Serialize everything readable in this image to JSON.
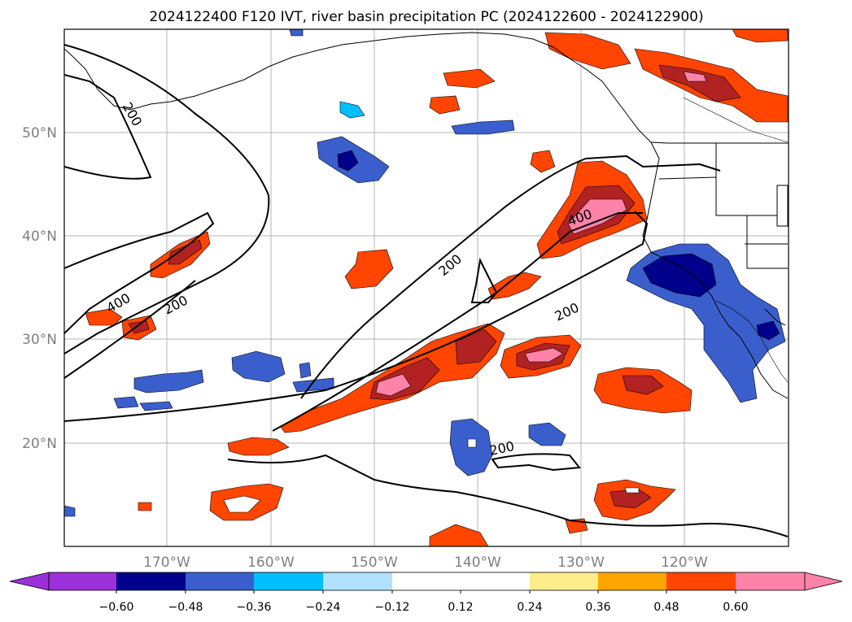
{
  "title": "2024122400 F120 IVT, river basin precipitation PC (2024122600 - 2024122900)",
  "map": {
    "lon_ticks": [
      "170°W",
      "160°W",
      "150°W",
      "140°W",
      "130°W",
      "120°W"
    ],
    "lat_ticks": [
      "50°N",
      "40°N",
      "30°N",
      "20°N"
    ],
    "ivt_contour_labels": [
      "200",
      "400",
      "200",
      "200",
      "400",
      "200",
      "200"
    ]
  },
  "colorbar": {
    "tick_labels": [
      "−0.60",
      "−0.48",
      "−0.36",
      "−0.24",
      "−0.12",
      "0.12",
      "0.24",
      "0.36",
      "0.48",
      "0.60"
    ],
    "under_color": "#9b30d9",
    "over_color": "#ff82a9",
    "colors": [
      "#00008b",
      "#3a5fcd",
      "#00bfff",
      "#b0e2ff",
      "#ffffff",
      "#ffffff",
      "#ffec8b",
      "#ffa500",
      "#ff4500",
      "#b22222"
    ]
  }
}
